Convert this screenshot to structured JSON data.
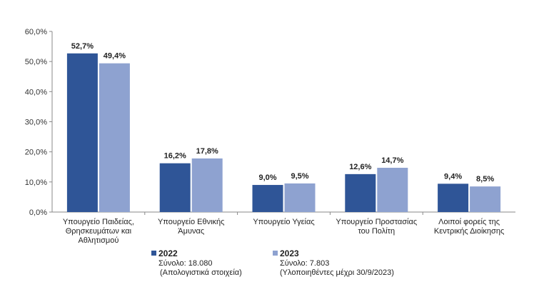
{
  "chart_data": {
    "type": "bar",
    "categories": [
      [
        "Υπουργείο Παιδείας,",
        "Θρησκευμάτων και",
        "Αθλητισμού"
      ],
      [
        "Υπουργείο Εθνικής",
        "Άμυνας"
      ],
      [
        "Υπουργείο Υγείας"
      ],
      [
        "Υπουργείο Προστασίας",
        "του Πολίτη"
      ],
      [
        "Λοιποί φορείς της",
        "Κεντρικής Διοίκησης"
      ]
    ],
    "series": [
      {
        "name": "2022",
        "values": [
          52.7,
          16.2,
          9.0,
          12.6,
          9.4
        ],
        "labels": [
          "52,7%",
          "16,2%",
          "9,0%",
          "12,6%",
          "9,4%"
        ],
        "color": "#2f5597"
      },
      {
        "name": "2023",
        "values": [
          49.4,
          17.8,
          9.5,
          14.7,
          8.5
        ],
        "labels": [
          "49,4%",
          "17,8%",
          "9,5%",
          "14,7%",
          "8,5%"
        ],
        "color": "#8ea2d0"
      }
    ],
    "yticks": [
      "0,0%",
      "10,0%",
      "20,0%",
      "30,0%",
      "40,0%",
      "50,0%",
      "60,0%"
    ],
    "ylim": [
      0,
      60
    ],
    "grid": false,
    "legend_position": "bottom"
  },
  "legend": {
    "s2022": {
      "name": "2022",
      "line1": "Σύνολο: 18.080",
      "line2": "(Απολογιστικά στοιχεία)"
    },
    "s2023": {
      "name": "2023",
      "line1": "Σύνολο: 7.803",
      "line2": "(Υλοποιηθέντες μέχρι 30/9/2023)"
    }
  }
}
